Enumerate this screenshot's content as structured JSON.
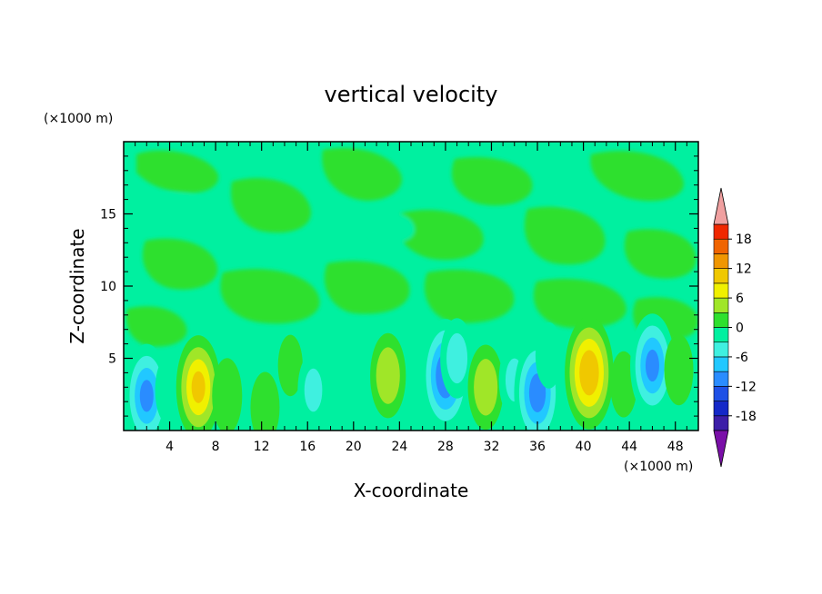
{
  "chart_data": {
    "type": "heatmap",
    "title": "vertical velocity",
    "xlabel": "X-coordinate",
    "ylabel": "Z-coordinate",
    "x_unit": "(×1000 m)",
    "y_unit": "(×1000 m)",
    "xlim": [
      0,
      50
    ],
    "ylim": [
      0,
      20
    ],
    "x_ticks": [
      "4",
      "8",
      "12",
      "16",
      "20",
      "24",
      "28",
      "32",
      "36",
      "40",
      "44",
      "48"
    ],
    "y_ticks": [
      "5",
      "10",
      "15"
    ],
    "colorbar": {
      "levels": [
        -21,
        -18,
        -15,
        -12,
        -9,
        -6,
        -3,
        0,
        3,
        6,
        9,
        12,
        15,
        18,
        21
      ],
      "labels": [
        "18",
        "12",
        "6",
        "0",
        "-6",
        "-12",
        "-18"
      ],
      "colors": [
        "#7a0fa8",
        "#3c1ea8",
        "#1428c8",
        "#1e50e6",
        "#2a8cff",
        "#21c8ff",
        "#3ff0e0",
        "#00f0a0",
        "#2ee02e",
        "#a0e628",
        "#f0f000",
        "#f0c800",
        "#f09600",
        "#f06400",
        "#f02800",
        "#f0a0a0"
      ]
    },
    "cells": [
      {
        "x": 2,
        "z": 2.4,
        "w": -12
      },
      {
        "x": 4,
        "z": 2.8,
        "w": -5
      },
      {
        "x": 6.5,
        "z": 3.0,
        "w": 12
      },
      {
        "x": 9,
        "z": 2.4,
        "w": 2
      },
      {
        "x": 12.3,
        "z": 1.6,
        "w": 5
      },
      {
        "x": 14.5,
        "z": 4.5,
        "w": 3
      },
      {
        "x": 16.5,
        "z": 2.8,
        "w": -6
      },
      {
        "x": 18.5,
        "z": 3.2,
        "w": -3
      },
      {
        "x": 23,
        "z": 3.8,
        "w": 8
      },
      {
        "x": 28,
        "z": 3.8,
        "w": -14
      },
      {
        "x": 29,
        "z": 5.0,
        "w": -7
      },
      {
        "x": 31.5,
        "z": 3.0,
        "w": 8
      },
      {
        "x": 34,
        "z": 3.5,
        "w": -6
      },
      {
        "x": 36,
        "z": 2.6,
        "w": -13
      },
      {
        "x": 37,
        "z": 5.2,
        "w": -4
      },
      {
        "x": 40.5,
        "z": 4.0,
        "w": 14
      },
      {
        "x": 43.5,
        "z": 3.2,
        "w": 4
      },
      {
        "x": 46,
        "z": 4.5,
        "w": -12
      },
      {
        "x": 48.3,
        "z": 4.2,
        "w": 5
      }
    ]
  }
}
